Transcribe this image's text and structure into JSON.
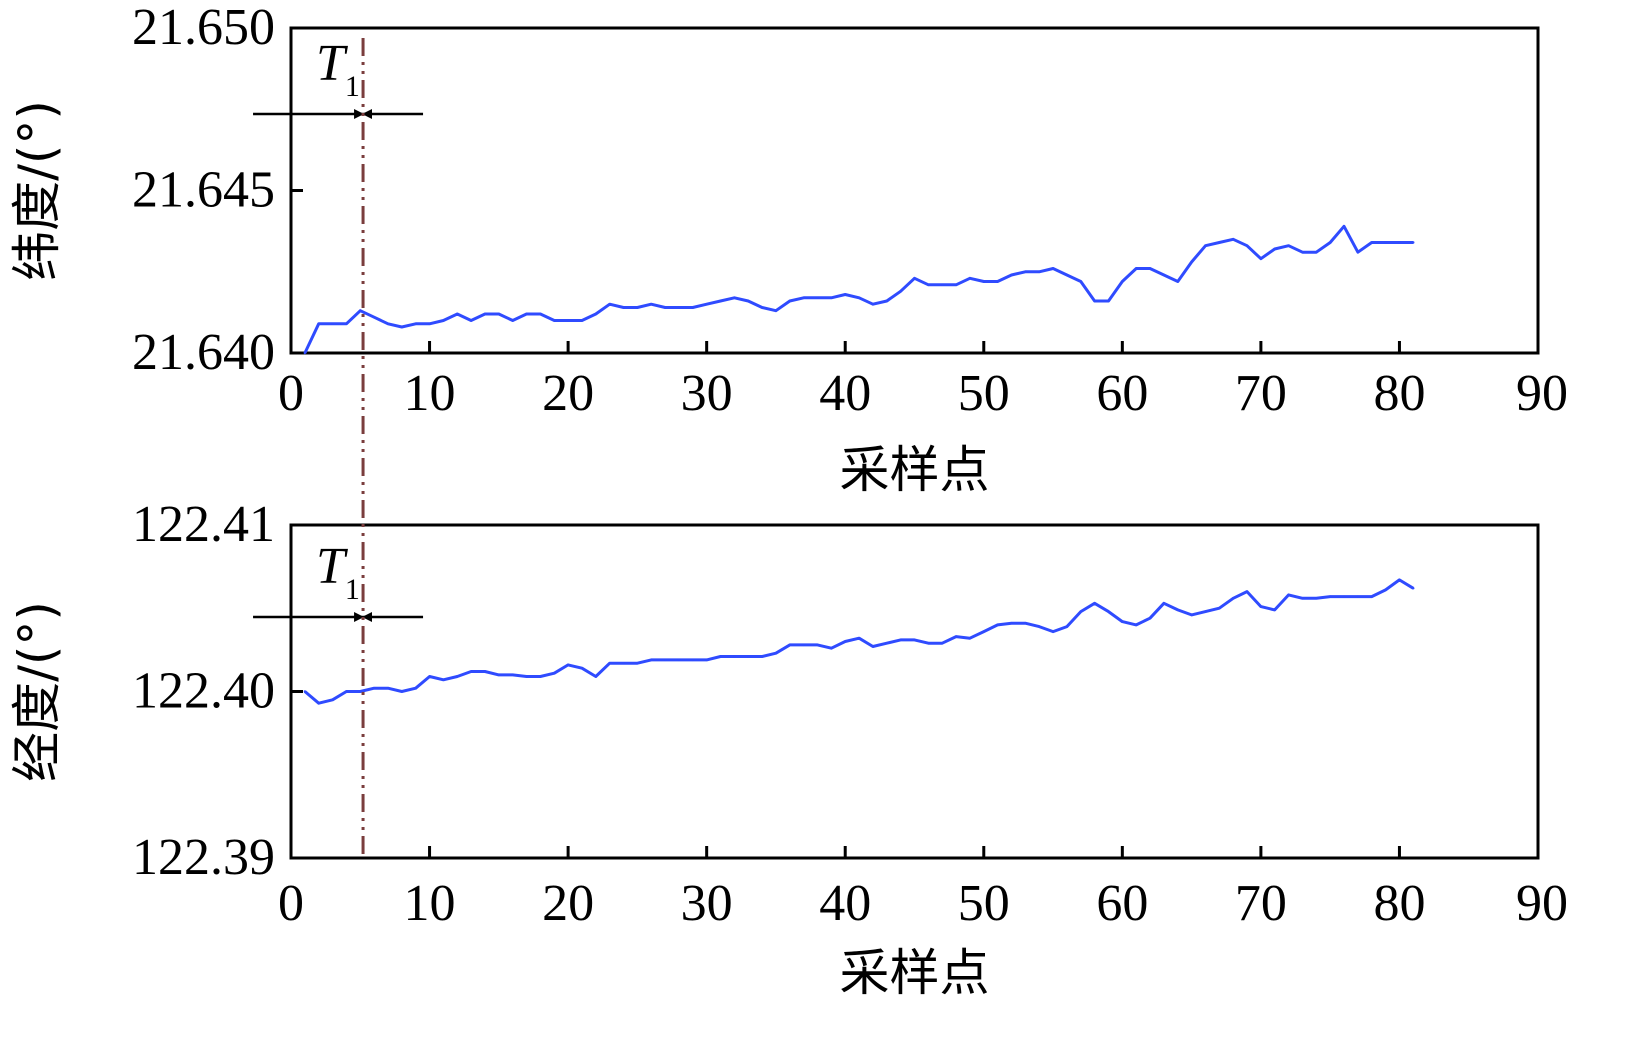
{
  "chart_data": [
    {
      "type": "line",
      "xlabel": "采样点",
      "ylabel": "纬度/(°)",
      "xlim": [
        0,
        90
      ],
      "ylim": [
        21.64,
        21.65
      ],
      "xticks": [
        "0",
        "10",
        "20",
        "30",
        "40",
        "50",
        "60",
        "70",
        "80",
        "90"
      ],
      "yticks": [
        "21.640",
        "21.645",
        "21.650"
      ],
      "grid": false,
      "line_color": "#2f4bff",
      "marker": {
        "x": 5.2,
        "label": "T",
        "subscript": "1",
        "color": "#7a3d3d"
      },
      "series": [
        {
          "x": [
            1,
            2,
            3,
            4,
            5,
            6,
            7,
            8,
            9,
            10,
            11,
            12,
            13,
            14,
            15,
            16,
            17,
            18,
            19,
            20,
            21,
            22,
            23,
            24,
            25,
            26,
            27,
            28,
            29,
            30,
            31,
            32,
            33,
            34,
            35,
            36,
            37,
            38,
            39,
            40,
            41,
            42,
            43,
            44,
            45,
            46,
            47,
            48,
            49,
            50,
            51,
            52,
            53,
            54,
            55,
            56,
            57,
            58,
            59,
            60,
            61,
            62,
            63,
            64,
            65,
            66,
            67,
            68,
            69,
            70,
            71,
            72,
            73,
            74,
            75,
            76,
            77,
            78,
            79,
            80,
            81
          ],
          "values": [
            21.64,
            21.6409,
            21.6409,
            21.6409,
            21.6413,
            21.6411,
            21.6409,
            21.6408,
            21.6409,
            21.6409,
            21.641,
            21.6412,
            21.641,
            21.6412,
            21.6412,
            21.641,
            21.6412,
            21.6412,
            21.641,
            21.641,
            21.641,
            21.6412,
            21.6415,
            21.6414,
            21.6414,
            21.6415,
            21.6414,
            21.6414,
            21.6414,
            21.6415,
            21.6416,
            21.6417,
            21.6416,
            21.6414,
            21.6413,
            21.6416,
            21.6417,
            21.6417,
            21.6417,
            21.6418,
            21.6417,
            21.6415,
            21.6416,
            21.6419,
            21.6423,
            21.6421,
            21.6421,
            21.6421,
            21.6423,
            21.6422,
            21.6422,
            21.6424,
            21.6425,
            21.6425,
            21.6426,
            21.6424,
            21.6422,
            21.6416,
            21.6416,
            21.6422,
            21.6426,
            21.6426,
            21.6424,
            21.6422,
            21.6428,
            21.6433,
            21.6434,
            21.6435,
            21.6433,
            21.6429,
            21.6432,
            21.6433,
            21.6431,
            21.6431,
            21.6434,
            21.6439,
            21.6431,
            21.6434,
            21.6434,
            21.6434,
            21.6434
          ]
        }
      ]
    },
    {
      "type": "line",
      "xlabel": "采样点",
      "ylabel": "经度/(°)",
      "xlim": [
        0,
        90
      ],
      "ylim": [
        122.39,
        122.41
      ],
      "xticks": [
        "0",
        "10",
        "20",
        "30",
        "40",
        "50",
        "60",
        "70",
        "80",
        "90"
      ],
      "yticks": [
        "122.39",
        "122.40",
        "122.41"
      ],
      "grid": false,
      "line_color": "#2f4bff",
      "marker": {
        "x": 5.2,
        "label": "T",
        "subscript": "1",
        "color": "#7a3d3d"
      },
      "series": [
        {
          "x": [
            1,
            2,
            3,
            4,
            5,
            6,
            7,
            8,
            9,
            10,
            11,
            12,
            13,
            14,
            15,
            16,
            17,
            18,
            19,
            20,
            21,
            22,
            23,
            24,
            25,
            26,
            27,
            28,
            29,
            30,
            31,
            32,
            33,
            34,
            35,
            36,
            37,
            38,
            39,
            40,
            41,
            42,
            43,
            44,
            45,
            46,
            47,
            48,
            49,
            50,
            51,
            52,
            53,
            54,
            55,
            56,
            57,
            58,
            59,
            60,
            61,
            62,
            63,
            64,
            65,
            66,
            67,
            68,
            69,
            70,
            71,
            72,
            73,
            74,
            75,
            76,
            77,
            78,
            79,
            80,
            81
          ],
          "values": [
            122.4,
            122.3993,
            122.3995,
            122.4,
            122.4,
            122.4002,
            122.4002,
            122.4,
            122.4002,
            122.4009,
            122.4007,
            122.4009,
            122.4012,
            122.4012,
            122.401,
            122.401,
            122.4009,
            122.4009,
            122.4011,
            122.4016,
            122.4014,
            122.4009,
            122.4017,
            122.4017,
            122.4017,
            122.4019,
            122.4019,
            122.4019,
            122.4019,
            122.4019,
            122.4021,
            122.4021,
            122.4021,
            122.4021,
            122.4023,
            122.4028,
            122.4028,
            122.4028,
            122.4026,
            122.403,
            122.4032,
            122.4027,
            122.4029,
            122.4031,
            122.4031,
            122.4029,
            122.4029,
            122.4033,
            122.4032,
            122.4036,
            122.404,
            122.4041,
            122.4041,
            122.4039,
            122.4036,
            122.4039,
            122.4048,
            122.4053,
            122.4048,
            122.4042,
            122.404,
            122.4044,
            122.4053,
            122.4049,
            122.4046,
            122.4048,
            122.405,
            122.4056,
            122.406,
            122.4051,
            122.4049,
            122.4058,
            122.4056,
            122.4056,
            122.4057,
            122.4057,
            122.4057,
            122.4057,
            122.4061,
            122.4067,
            122.4062
          ]
        }
      ]
    }
  ]
}
